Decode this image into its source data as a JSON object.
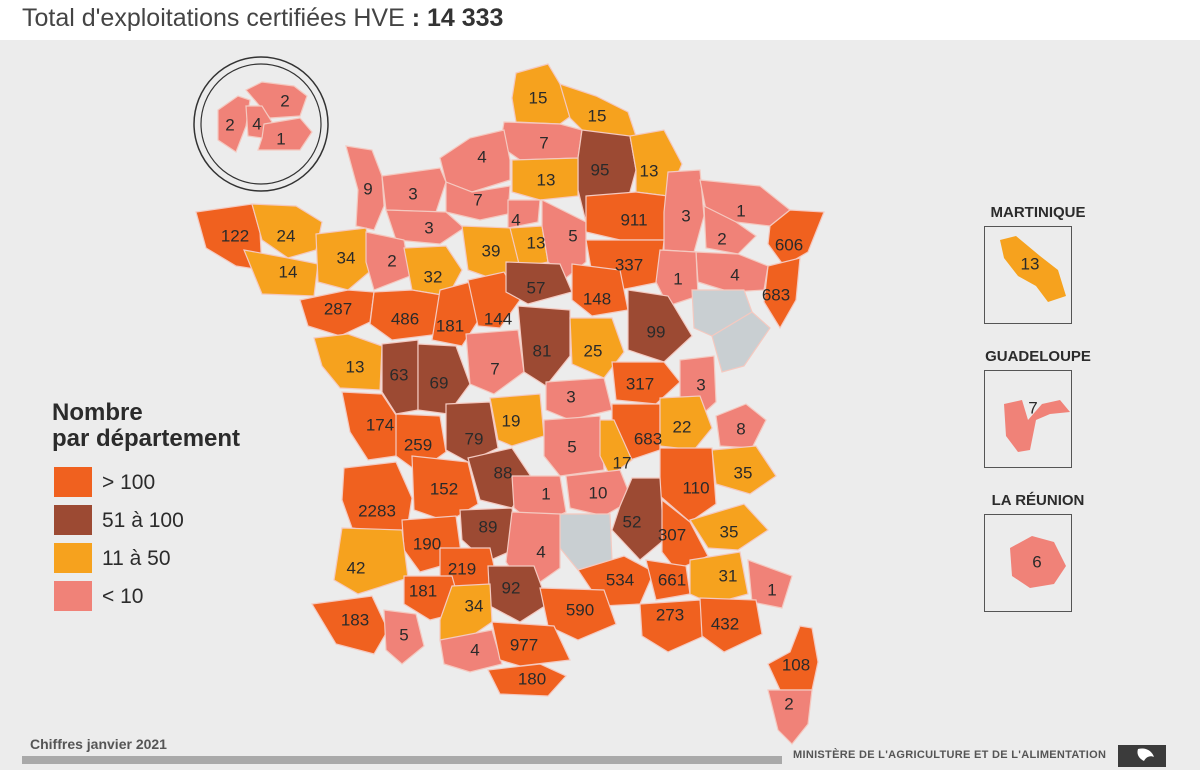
{
  "title": {
    "prefix": "Total d'exploitations certifiées HVE",
    "separator": " : ",
    "total": "14 333"
  },
  "legend": {
    "title_line1": "Nombre",
    "title_line2": "par département",
    "items": [
      {
        "label": "> 100",
        "color": "#f0611f"
      },
      {
        "label": "51 à 100",
        "color": "#9c4a33"
      },
      {
        "label": "11 à 50",
        "color": "#f6a21e"
      },
      {
        "label": "< 10",
        "color": "#f08278"
      }
    ]
  },
  "colors": {
    "gt100": "#f0611f",
    "r51_100": "#9c4a33",
    "r11_50": "#f6a21e",
    "lt10": "#f08278",
    "nodata": "#c9cfd2"
  },
  "departments": {
    "nord": "15",
    "pas_de_calais": "15",
    "somme": "7",
    "aisne": "95",
    "ardennes": "13",
    "seine_maritime": "4",
    "manche": "9",
    "calvados": "3",
    "eure": "7",
    "oise": "13",
    "val_doise": "4",
    "essonne": "13",
    "marne": "911",
    "meuse": "3",
    "moselle": "1",
    "meurthe_et_moselle": "2",
    "bas_rhin": "606",
    "haut_rhin": "683",
    "vosges": "4",
    "finistere": "122",
    "cotes_darmor": "24",
    "morbihan": "14",
    "ille_et_vilaine": "34",
    "orne": "3",
    "mayenne": "2",
    "sarthe": "32",
    "eure_et_loir": "39",
    "seine_et_marne": "5",
    "aube": "337",
    "haute_marne": "1",
    "loire_atlantique": "287",
    "maine_et_loire": "486",
    "indre_et_loire": "181",
    "loir_et_cher": "144",
    "loiret": "57",
    "yonne": "148",
    "cote_dor": "99",
    "vendee": "13",
    "deux_sevres": "63",
    "vienne": "69",
    "indre": "7",
    "cher": "81",
    "nievre": "25",
    "saone_et_loire": "317",
    "jura": "3",
    "doubs": "",
    "haute_saone": "",
    "charente_maritime": "174",
    "charente": "259",
    "haute_vienne": "79",
    "creuse": "19",
    "allier": "3",
    "puy_de_dome": "5",
    "loire": "683",
    "rhone": "17",
    "ain": "22",
    "haute_savoie": "8",
    "savoie": "35",
    "isere": "110",
    "gironde": "2283",
    "dordogne": "152",
    "correze": "88",
    "cantal": "1",
    "haute_loire": "10",
    "ardeche": "52",
    "drome": "307",
    "hautes_alpes": "35",
    "alpes_de_haute_provence": "31",
    "lot": "89",
    "lot_et_garonne": "190",
    "landes": "42",
    "tarn_et_garonne": "219",
    "aveyron": "4",
    "lozere": "",
    "gard": "534",
    "vaucluse": "661",
    "alpes_maritimes": "1",
    "var": "432",
    "bouches_du_rhone": "273",
    "tarn": "92",
    "gers": "181",
    "haute_garonne": "34",
    "herault": "590",
    "pyrenees_atlantiques": "183",
    "hautes_pyrenees": "5",
    "ariege": "4",
    "aude": "977",
    "pyrenees_orientales": "180",
    "haute_corse": "108",
    "corse_du_sud": "2",
    "paris_inset_a": "2",
    "paris_inset_b": "2",
    "paris_inset_c": "4",
    "paris_inset_d": "1"
  },
  "overseas": {
    "martinique": {
      "name": "MARTINIQUE",
      "value": "13"
    },
    "guadeloupe": {
      "name": "GUADELOUPE",
      "value": "7"
    },
    "reunion": {
      "name": "LA RÉUNION",
      "value": "6"
    }
  },
  "footer": {
    "date": "Chiffres janvier 2021",
    "ministry": "MINISTÈRE DE L'AGRICULTURE ET DE L'ALIMENTATION"
  }
}
